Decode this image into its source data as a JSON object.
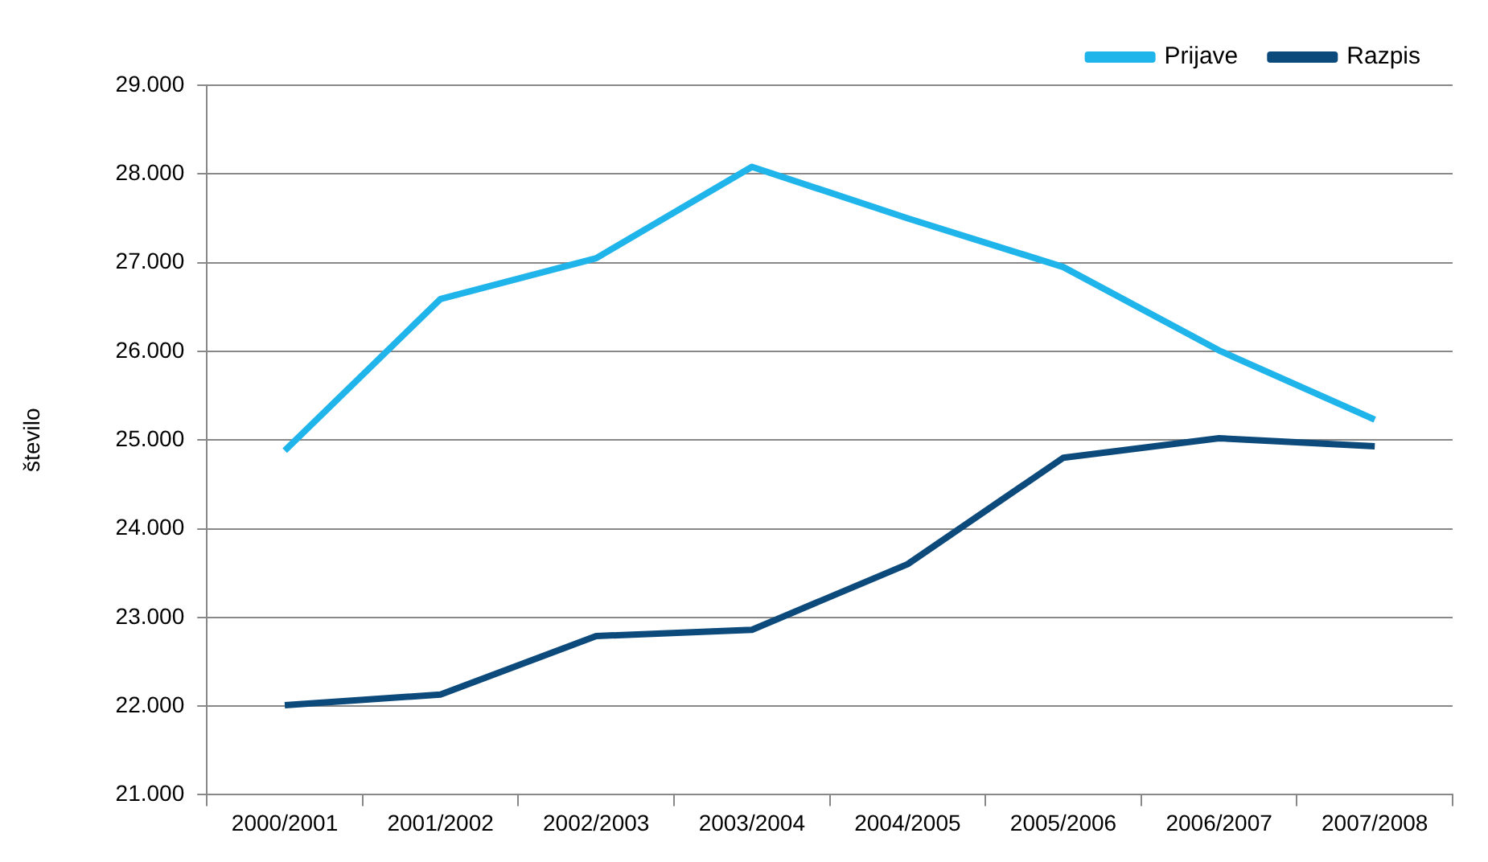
{
  "chart_data": {
    "type": "line",
    "ylabel": "število",
    "categories": [
      "2000/2001",
      "2001/2002",
      "2002/2003",
      "2003/2004",
      "2004/2005",
      "2005/2006",
      "2006/2007",
      "2007/2008"
    ],
    "series": [
      {
        "name": "Prijave",
        "color": "#1fb4ea",
        "values": [
          24880,
          26590,
          27050,
          28080,
          27500,
          26950,
          26010,
          25230
        ]
      },
      {
        "name": "Razpis",
        "color": "#0d4a7c",
        "values": [
          22010,
          22130,
          22790,
          22860,
          23600,
          24800,
          25020,
          24930
        ]
      }
    ],
    "ylim": [
      21000,
      29000
    ],
    "yticks": [
      {
        "value": 21000,
        "label": "21.000"
      },
      {
        "value": 22000,
        "label": "22.000"
      },
      {
        "value": 23000,
        "label": "23.000"
      },
      {
        "value": 24000,
        "label": "24.000"
      },
      {
        "value": 25000,
        "label": "25.000"
      },
      {
        "value": 26000,
        "label": "26.000"
      },
      {
        "value": 27000,
        "label": "27.000"
      },
      {
        "value": 28000,
        "label": "28.000"
      },
      {
        "value": 29000,
        "label": "29.000"
      }
    ],
    "grid": "y",
    "legend": "top right",
    "marker": "none",
    "line_style": "solid"
  }
}
